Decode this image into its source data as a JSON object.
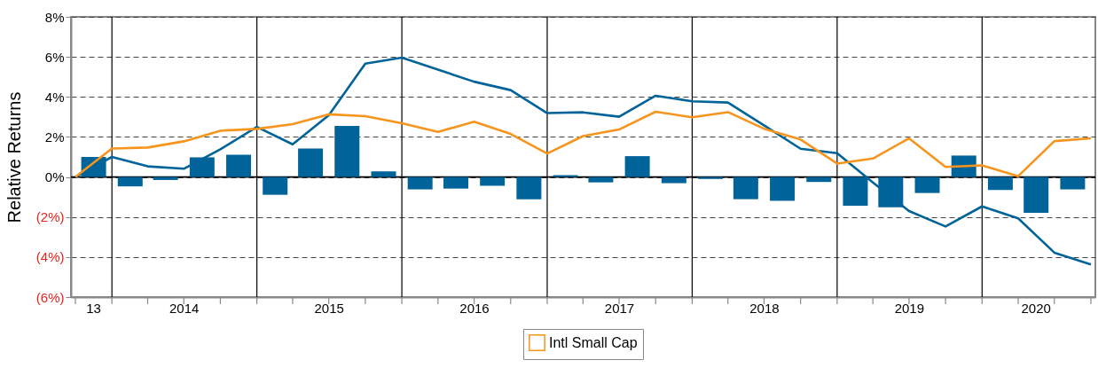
{
  "chart_data": {
    "type": "bar",
    "ylabel": "Relative Returns",
    "xlim": [
      "2013-09-30",
      "2020-09-30"
    ],
    "ylim": [
      -6,
      8
    ],
    "yticks": [
      {
        "value": -6,
        "label": "(6%)"
      },
      {
        "value": -4,
        "label": "(4%)"
      },
      {
        "value": -2,
        "label": "(2%)"
      },
      {
        "value": 0,
        "label": "0%"
      },
      {
        "value": 2,
        "label": "2%"
      },
      {
        "value": 4,
        "label": "4%"
      },
      {
        "value": 6,
        "label": "6%"
      },
      {
        "value": 8,
        "label": "8%"
      }
    ],
    "xticks": [
      {
        "value": "2013-09-30",
        "label": null
      },
      {
        "value": "2013-12-31",
        "label": null
      },
      {
        "value": "2014-03-31",
        "label": null
      },
      {
        "value": "2014-06-30",
        "label": null
      },
      {
        "value": "2014-09-30",
        "label": null
      },
      {
        "value": "2014-12-31",
        "label": null
      },
      {
        "value": "2015-03-31",
        "label": null
      },
      {
        "value": "2015-06-30",
        "label": null
      },
      {
        "value": "2015-09-30",
        "label": null
      },
      {
        "value": "2015-12-31",
        "label": null
      },
      {
        "value": "2016-03-31",
        "label": null
      },
      {
        "value": "2016-06-30",
        "label": null
      },
      {
        "value": "2016-09-30",
        "label": null
      },
      {
        "value": "2016-12-31",
        "label": null
      },
      {
        "value": "2017-03-31",
        "label": null
      },
      {
        "value": "2017-06-30",
        "label": null
      },
      {
        "value": "2017-09-30",
        "label": null
      },
      {
        "value": "2017-12-31",
        "label": null
      },
      {
        "value": "2018-03-31",
        "label": null
      },
      {
        "value": "2018-06-30",
        "label": null
      },
      {
        "value": "2018-09-30",
        "label": null
      },
      {
        "value": "2018-12-31",
        "label": null
      },
      {
        "value": "2019-03-31",
        "label": null
      },
      {
        "value": "2019-06-30",
        "label": null
      },
      {
        "value": "2019-09-30",
        "label": null
      },
      {
        "value": "2019-12-31",
        "label": null
      },
      {
        "value": "2020-03-31",
        "label": null
      },
      {
        "value": "2020-06-30",
        "label": null
      },
      {
        "value": "2020-09-30",
        "label": null
      },
      {
        "value": "2013-11-15",
        "label": "13"
      },
      {
        "value": "2014-07-01",
        "label": "2014"
      },
      {
        "value": "2015-07-01",
        "label": "2015"
      },
      {
        "value": "2016-07-01",
        "label": "2016"
      },
      {
        "value": "2017-07-01",
        "label": "2017"
      },
      {
        "value": "2018-07-01",
        "label": "2018"
      },
      {
        "value": "2019-07-01",
        "label": "2019"
      },
      {
        "value": "2020-05-15",
        "label": "2020"
      }
    ],
    "grid": "y",
    "legend": "bottom",
    "ref_lines": [
      {
        "axis": "y",
        "value": 0,
        "color": "#000000"
      },
      {
        "axis": "x",
        "value": "2013-12-31",
        "color": "#000000"
      },
      {
        "axis": "x",
        "value": "2014-12-31",
        "color": "#000000"
      },
      {
        "axis": "x",
        "value": "2015-12-31",
        "color": "#000000"
      },
      {
        "axis": "x",
        "value": "2016-12-31",
        "color": "#000000"
      },
      {
        "axis": "x",
        "value": "2017-12-31",
        "color": "#000000"
      },
      {
        "axis": "x",
        "value": "2018-12-31",
        "color": "#000000"
      },
      {
        "axis": "x",
        "value": "2019-12-31",
        "color": "#000000"
      }
    ],
    "series": [
      {
        "color": "#00639a",
        "x": [
          "2013-11-15",
          "2014-02-15",
          "2014-05-15",
          "2014-08-15",
          "2014-11-15",
          "2015-02-15",
          "2015-05-15",
          "2015-08-15",
          "2015-11-15",
          "2016-02-15",
          "2016-05-15",
          "2016-08-15",
          "2016-11-15",
          "2017-02-15",
          "2017-05-15",
          "2017-08-15",
          "2017-11-15",
          "2018-02-15",
          "2018-05-15",
          "2018-08-15",
          "2018-11-15",
          "2019-02-15",
          "2019-05-15",
          "2019-08-15",
          "2019-11-15",
          "2020-02-15",
          "2020-05-15",
          "2020-08-15"
        ],
        "values": [
          1.0,
          -0.47,
          -0.15,
          0.98,
          1.11,
          -0.89,
          1.42,
          2.55,
          0.28,
          -0.62,
          -0.58,
          -0.44,
          -1.11,
          0.09,
          -0.27,
          1.04,
          -0.31,
          -0.1,
          -1.11,
          -1.19,
          -0.25,
          -1.44,
          -1.51,
          -0.8,
          1.07,
          -0.65,
          -1.79,
          -0.62
        ]
      },
      {
        "type": "line",
        "color": "#00639a",
        "x": [
          "2013-09-30",
          "2013-12-31",
          "2014-03-31",
          "2014-06-30",
          "2014-09-30",
          "2014-12-31",
          "2015-03-31",
          "2015-06-30",
          "2015-09-30",
          "2015-12-31",
          "2016-03-31",
          "2016-06-30",
          "2016-09-30",
          "2016-12-31",
          "2017-03-31",
          "2017-06-30",
          "2017-09-30",
          "2017-12-31",
          "2018-03-31",
          "2018-06-30",
          "2018-09-30",
          "2018-12-31",
          "2019-03-31",
          "2019-06-30",
          "2019-09-30",
          "2019-12-31",
          "2020-03-31",
          "2020-06-30",
          "2020-09-30"
        ],
        "values": [
          0,
          1.0,
          0.53,
          0.41,
          1.38,
          2.5,
          1.63,
          3.08,
          5.66,
          5.96,
          5.36,
          4.76,
          4.34,
          3.19,
          3.23,
          3.01,
          4.06,
          3.78,
          3.72,
          2.58,
          1.41,
          1.19,
          -0.27,
          -1.7,
          -2.47,
          -1.47,
          -2.07,
          -3.78,
          -4.37
        ]
      },
      {
        "type": "line",
        "name": "Intl Small Cap",
        "color": "#f7941d",
        "x": [
          "2013-09-30",
          "2013-12-31",
          "2014-03-31",
          "2014-06-30",
          "2014-09-30",
          "2014-12-31",
          "2015-03-31",
          "2015-06-30",
          "2015-09-30",
          "2015-12-31",
          "2016-03-31",
          "2016-06-30",
          "2016-09-30",
          "2016-12-31",
          "2017-03-31",
          "2017-06-30",
          "2017-09-30",
          "2017-12-31",
          "2018-03-31",
          "2018-06-30",
          "2018-09-30",
          "2018-12-31",
          "2019-03-31",
          "2019-06-30",
          "2019-09-30",
          "2019-12-31",
          "2020-03-31",
          "2020-06-30",
          "2020-09-30"
        ],
        "values": [
          0,
          1.42,
          1.47,
          1.78,
          2.31,
          2.4,
          2.64,
          3.13,
          3.04,
          2.68,
          2.25,
          2.76,
          2.15,
          1.17,
          2.04,
          2.37,
          3.26,
          2.98,
          3.24,
          2.41,
          1.87,
          0.67,
          0.92,
          1.93,
          0.5,
          0.58,
          0.04,
          1.79,
          1.93
        ]
      }
    ]
  }
}
